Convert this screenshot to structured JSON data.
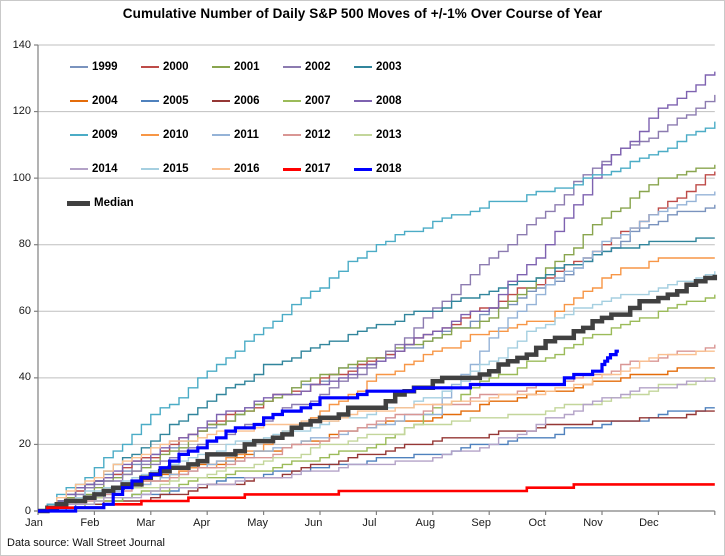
{
  "title": "Cumulative Number of Daily S&P 500 Moves of +/-1% Over Course of Year",
  "footer": "Data source: Wall Street Journal",
  "colors": {
    "background": "#ffffff",
    "border": "#c9c9c9",
    "gridline": "#bfbfbf",
    "axis": "#808080",
    "highlight_2017": "#ff0000",
    "highlight_2018": "#0000ff",
    "median": "#404040"
  },
  "chart_data": {
    "type": "line",
    "title": "Cumulative Number of Daily S&P 500 Moves of +/-1% Over Course of Year",
    "xlabel": "",
    "ylabel": "",
    "grid": "horizontal",
    "legend_position": "top-left-inside",
    "x_axis": {
      "labels": [
        "Jan",
        "Feb",
        "Mar",
        "Apr",
        "May",
        "Jun",
        "Jul",
        "Aug",
        "Sep",
        "Oct",
        "Nov",
        "Dec"
      ],
      "unit": "month"
    },
    "y_axis": {
      "min": 0,
      "max": 140,
      "tick_step": 20,
      "ticks": [
        0,
        20,
        40,
        60,
        80,
        100,
        120,
        140
      ]
    },
    "x_months": [
      0,
      1,
      2,
      3,
      4,
      5,
      6,
      7,
      8,
      9,
      10,
      11,
      12
    ],
    "series": [
      {
        "name": "1999",
        "color": "#7a93be",
        "width": 1.4,
        "values": [
          0,
          9,
          17,
          25,
          33,
          40,
          46,
          52,
          60,
          68,
          78,
          88,
          92
        ]
      },
      {
        "name": "2000",
        "color": "#be4b48",
        "width": 1.4,
        "values": [
          0,
          9,
          17,
          26,
          33,
          39,
          46,
          54,
          62,
          70,
          80,
          91,
          102
        ]
      },
      {
        "name": "2001",
        "color": "#89a54e",
        "width": 1.4,
        "values": [
          0,
          7,
          15,
          25,
          33,
          41,
          47,
          52,
          58,
          72,
          88,
          100,
          104
        ]
      },
      {
        "name": "2002",
        "color": "#8c7bb0",
        "width": 1.4,
        "values": [
          0,
          8,
          14,
          21,
          28,
          35,
          45,
          60,
          76,
          90,
          106,
          114,
          125
        ]
      },
      {
        "name": "2003",
        "color": "#31859c",
        "width": 1.4,
        "values": [
          0,
          10,
          21,
          33,
          43,
          50,
          56,
          61,
          66,
          71,
          78,
          81,
          82
        ]
      },
      {
        "name": "2004",
        "color": "#e46c0a",
        "width": 1.4,
        "values": [
          0,
          5,
          10,
          14,
          18,
          22,
          26,
          28,
          32,
          36,
          39,
          42,
          43
        ]
      },
      {
        "name": "2005",
        "color": "#4f81bd",
        "width": 1.4,
        "values": [
          0,
          2,
          5,
          8,
          11,
          13,
          15,
          17,
          20,
          23,
          26,
          29,
          31
        ]
      },
      {
        "name": "2006",
        "color": "#953735",
        "width": 1.4,
        "values": [
          0,
          2,
          4,
          7,
          10,
          14,
          18,
          21,
          23,
          25,
          27,
          28,
          30
        ]
      },
      {
        "name": "2007",
        "color": "#9bbb59",
        "width": 1.4,
        "values": [
          0,
          2,
          6,
          10,
          13,
          16,
          20,
          30,
          40,
          46,
          54,
          60,
          65
        ]
      },
      {
        "name": "2008",
        "color": "#7e62b0",
        "width": 1.4,
        "values": [
          0,
          9,
          17,
          27,
          34,
          38,
          45,
          54,
          62,
          80,
          104,
          120,
          132
        ]
      },
      {
        "name": "2009",
        "color": "#4bacc6",
        "width": 1.4,
        "values": [
          0,
          13,
          28,
          42,
          55,
          68,
          80,
          87,
          92,
          96,
          101,
          108,
          117
        ]
      },
      {
        "name": "2010",
        "color": "#f79646",
        "width": 1.4,
        "values": [
          0,
          4,
          9,
          14,
          20,
          30,
          40,
          48,
          54,
          58,
          70,
          76,
          76
        ]
      },
      {
        "name": "2011",
        "color": "#95b3d7",
        "width": 1.4,
        "values": [
          0,
          4,
          9,
          14,
          18,
          22,
          26,
          30,
          52,
          68,
          80,
          90,
          96
        ]
      },
      {
        "name": "2012",
        "color": "#d99694",
        "width": 1.4,
        "values": [
          0,
          4,
          9,
          13,
          17,
          21,
          27,
          31,
          35,
          38,
          42,
          46,
          50
        ]
      },
      {
        "name": "2013",
        "color": "#c3d69b",
        "width": 1.4,
        "values": [
          0,
          4,
          8,
          11,
          15,
          19,
          23,
          26,
          28,
          30,
          33,
          37,
          40
        ]
      },
      {
        "name": "2014",
        "color": "#b3a2c7",
        "width": 1.4,
        "values": [
          0,
          3,
          6,
          8,
          10,
          12,
          14,
          16,
          20,
          27,
          34,
          37,
          40
        ]
      },
      {
        "name": "2015",
        "color": "#a5cfe0",
        "width": 1.4,
        "values": [
          0,
          6,
          12,
          18,
          22,
          26,
          30,
          34,
          45,
          57,
          63,
          67,
          72
        ]
      },
      {
        "name": "2016",
        "color": "#fac090",
        "width": 1.4,
        "values": [
          0,
          11,
          19,
          23,
          25,
          27,
          30,
          32,
          34,
          36,
          40,
          47,
          48
        ]
      },
      {
        "name": "2017",
        "color": "#ff0000",
        "width": 2.6,
        "values": [
          0,
          1,
          3,
          4,
          4,
          5,
          5,
          5,
          5,
          7,
          8,
          8,
          8
        ]
      },
      {
        "name": "2018",
        "color": "#0000ff",
        "width": 3.2,
        "x": [
          0,
          1,
          2,
          3,
          4,
          5,
          6,
          7,
          8,
          9,
          10,
          10.3
        ],
        "values": [
          0,
          1,
          12,
          21,
          28,
          33,
          36,
          37,
          37,
          37,
          44,
          48
        ]
      },
      {
        "name": "Median",
        "color": "#404040",
        "width": 4.5,
        "values": [
          0,
          5,
          11,
          16,
          21,
          28,
          32,
          39,
          42,
          50,
          58,
          64,
          71
        ]
      }
    ],
    "draw_order": [
      0,
      1,
      2,
      3,
      4,
      5,
      6,
      7,
      8,
      9,
      10,
      11,
      12,
      13,
      14,
      15,
      16,
      17,
      20,
      18,
      19
    ]
  }
}
